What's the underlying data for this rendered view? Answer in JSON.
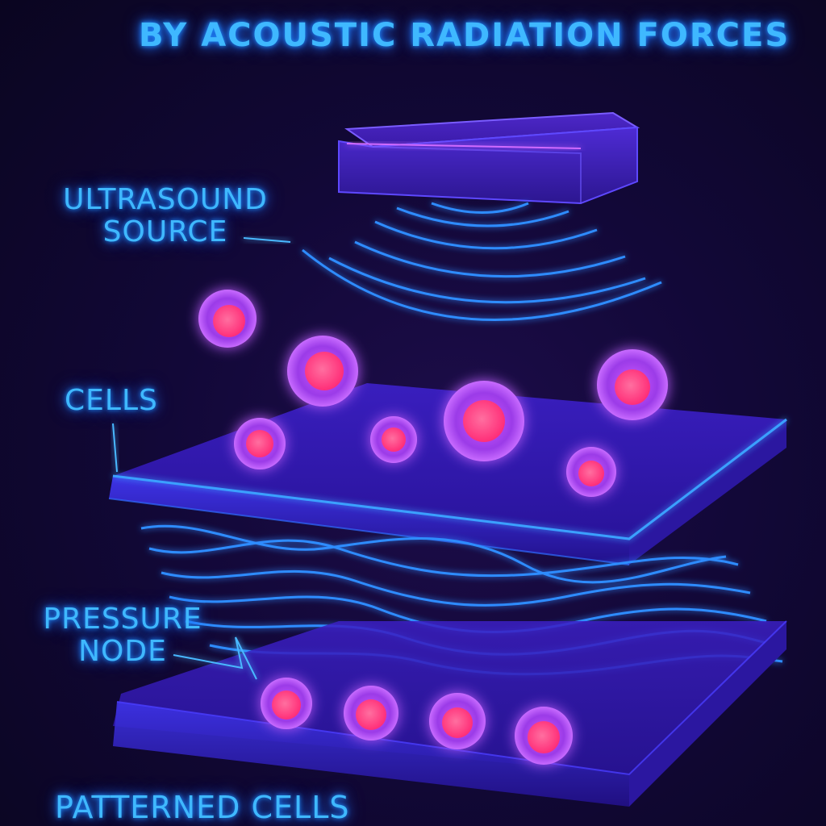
{
  "title": "BY ACOUSTIC RADIATION FORCES",
  "labels": {
    "ultrasound_source": "ULTRASOUND\nSOURCE",
    "cells": "CELLS",
    "pressure_node": "PRESSURE\nNODE",
    "patterned_cells": "PATTERNED CELLS"
  },
  "colors": {
    "background": "#120838",
    "label_glow": "#3fb8ff",
    "wave": "#2f8cff",
    "plate": "#3a1fbf",
    "plate_edge": "#3aa0ff",
    "cell_outer": "#b44cff",
    "cell_nucleus": "#ff3f8a"
  }
}
